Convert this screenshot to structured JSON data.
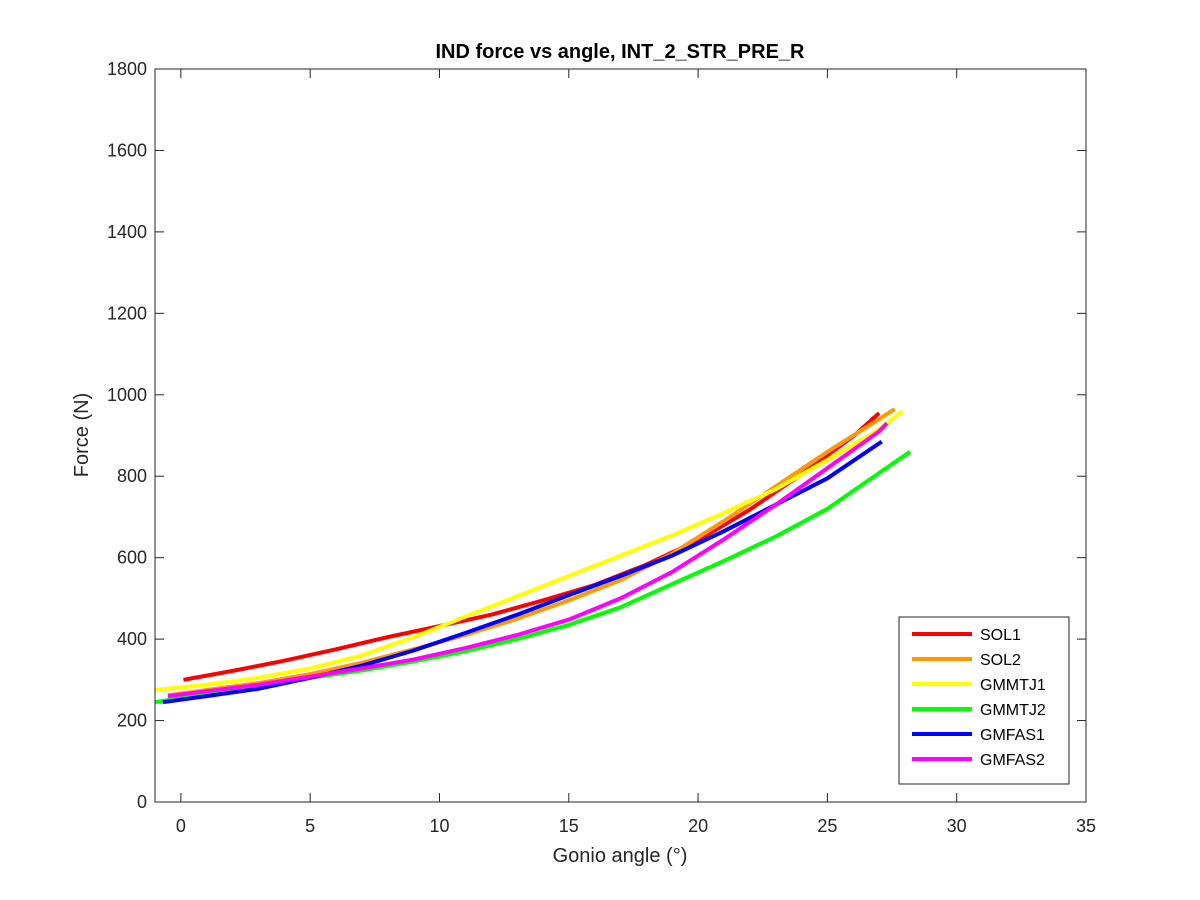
{
  "chart_data": {
    "type": "line",
    "title": "IND force vs angle, INT_2_STR_PRE_R",
    "xlabel": "Gonio angle (°)",
    "ylabel": "Force (N)",
    "xlim": [
      -1,
      35
    ],
    "ylim": [
      0,
      1800
    ],
    "xticks": [
      0,
      5,
      10,
      15,
      20,
      25,
      30,
      35
    ],
    "yticks": [
      0,
      200,
      400,
      600,
      800,
      1000,
      1200,
      1400,
      1600,
      1800
    ],
    "grid": false,
    "legend_position": "bottom-right",
    "series": [
      {
        "name": "SOL1",
        "color": "#ff0000",
        "points": [
          [
            0.1,
            300
          ],
          [
            2,
            322
          ],
          [
            4,
            347
          ],
          [
            6,
            375
          ],
          [
            8,
            405
          ],
          [
            10,
            432
          ],
          [
            12,
            460
          ],
          [
            14,
            495
          ],
          [
            16,
            533
          ],
          [
            18,
            583
          ],
          [
            20,
            643
          ],
          [
            22,
            718
          ],
          [
            24,
            805
          ],
          [
            26,
            898
          ],
          [
            27,
            955
          ]
        ]
      },
      {
        "name": "SOL2",
        "color": "#ff9900",
        "points": [
          [
            -0.5,
            262
          ],
          [
            1,
            275
          ],
          [
            3,
            292
          ],
          [
            5,
            314
          ],
          [
            7,
            342
          ],
          [
            9,
            375
          ],
          [
            11,
            410
          ],
          [
            13,
            450
          ],
          [
            15,
            495
          ],
          [
            17,
            545
          ],
          [
            19,
            610
          ],
          [
            21,
            690
          ],
          [
            23,
            775
          ],
          [
            25,
            860
          ],
          [
            27,
            940
          ],
          [
            27.6,
            965
          ]
        ]
      },
      {
        "name": "GMMTJ1",
        "color": "#ffff00",
        "points": [
          [
            -1,
            275
          ],
          [
            1,
            288
          ],
          [
            3,
            305
          ],
          [
            5,
            328
          ],
          [
            7,
            360
          ],
          [
            9,
            405
          ],
          [
            11,
            455
          ],
          [
            13,
            505
          ],
          [
            15,
            555
          ],
          [
            17,
            605
          ],
          [
            19,
            655
          ],
          [
            21,
            710
          ],
          [
            23,
            768
          ],
          [
            25,
            840
          ],
          [
            27,
            915
          ],
          [
            27.9,
            960
          ]
        ]
      },
      {
        "name": "GMMTJ2",
        "color": "#00ff00",
        "points": [
          [
            -1,
            245
          ],
          [
            1,
            265
          ],
          [
            3,
            285
          ],
          [
            5,
            305
          ],
          [
            7,
            323
          ],
          [
            9,
            345
          ],
          [
            11,
            370
          ],
          [
            13,
            400
          ],
          [
            15,
            435
          ],
          [
            17,
            478
          ],
          [
            19,
            535
          ],
          [
            21,
            592
          ],
          [
            23,
            652
          ],
          [
            25,
            720
          ],
          [
            27,
            808
          ],
          [
            28.2,
            860
          ]
        ]
      },
      {
        "name": "GMFAS1",
        "color": "#0000ff",
        "points": [
          [
            -0.7,
            245
          ],
          [
            1,
            260
          ],
          [
            3,
            278
          ],
          [
            5,
            305
          ],
          [
            7,
            335
          ],
          [
            9,
            372
          ],
          [
            11,
            415
          ],
          [
            13,
            460
          ],
          [
            15,
            508
          ],
          [
            17,
            555
          ],
          [
            19,
            605
          ],
          [
            21,
            665
          ],
          [
            23,
            730
          ],
          [
            25,
            795
          ],
          [
            27.1,
            885
          ]
        ]
      },
      {
        "name": "GMFAS2",
        "color": "#ff00ff",
        "points": [
          [
            -0.5,
            260
          ],
          [
            1,
            272
          ],
          [
            3,
            288
          ],
          [
            5,
            308
          ],
          [
            7,
            328
          ],
          [
            9,
            350
          ],
          [
            11,
            378
          ],
          [
            13,
            410
          ],
          [
            15,
            448
          ],
          [
            17,
            500
          ],
          [
            19,
            565
          ],
          [
            21,
            645
          ],
          [
            23,
            730
          ],
          [
            25,
            820
          ],
          [
            27,
            910
          ],
          [
            27.3,
            930
          ]
        ]
      }
    ]
  }
}
